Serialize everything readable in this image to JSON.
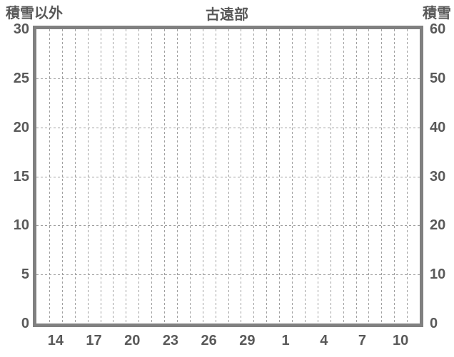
{
  "chart_data": {
    "type": "line",
    "title": "古遠部",
    "left_y_axis": {
      "label": "積雪以外",
      "tick_labels": [
        "30",
        "25",
        "20",
        "15",
        "10",
        "5",
        "0"
      ],
      "min": 0,
      "max": 30,
      "tick_step": 5
    },
    "right_y_axis": {
      "label": "積雪",
      "tick_labels": [
        "60",
        "50",
        "40",
        "30",
        "20",
        "10",
        "0"
      ],
      "min": 0,
      "max": 60,
      "tick_step": 10
    },
    "x_axis": {
      "tick_labels": [
        "14",
        "17",
        "20",
        "23",
        "26",
        "29",
        "1",
        "4",
        "7",
        "10"
      ],
      "tick_day_indices": [
        1,
        4,
        7,
        10,
        13,
        16,
        19,
        22,
        25,
        28
      ],
      "num_day_slots": 30
    },
    "series": [],
    "grid": {
      "vertical_lines": 29,
      "horizontal_lines": 5,
      "style": "dashed"
    },
    "colors": {
      "frame_border": "#808080",
      "gridline": "#a0a0a0",
      "text": "#595959",
      "background": "#ffffff"
    }
  }
}
